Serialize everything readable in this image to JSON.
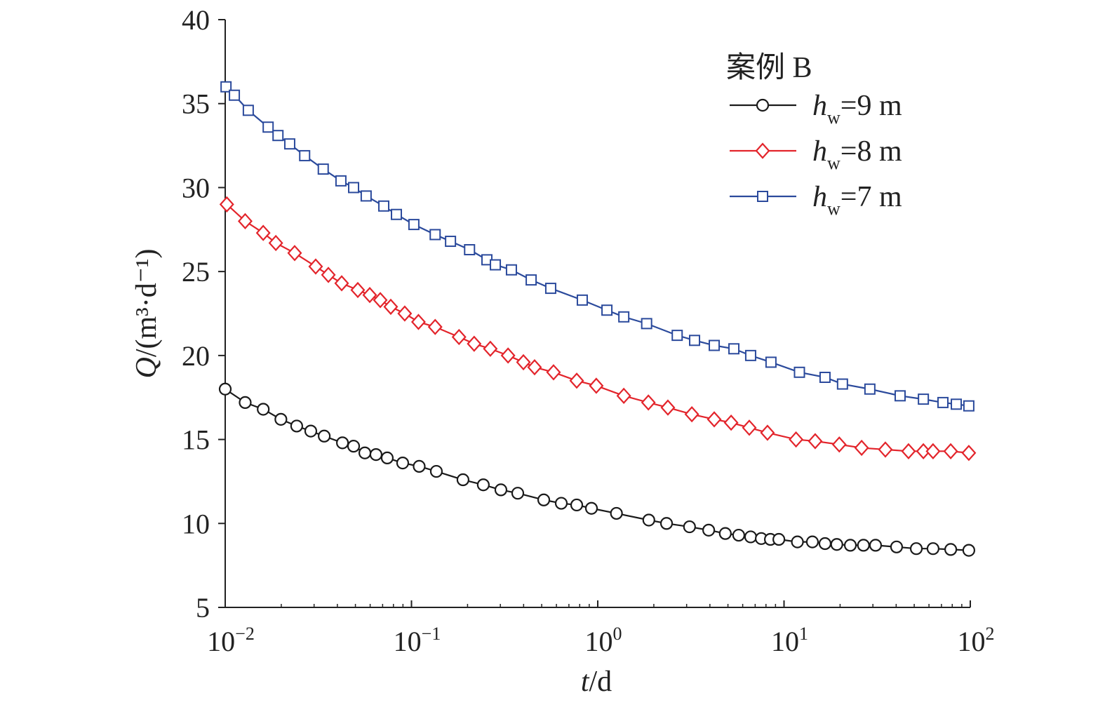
{
  "chart_data": {
    "type": "line",
    "title": "",
    "legend_title": "案例 B",
    "legend_placement": "top-right",
    "xlabel": {
      "var": "t",
      "rest": "/d"
    },
    "ylabel": {
      "var": "Q",
      "rest": "/(m³·d⁻¹)"
    },
    "xscale": "log",
    "xlim": [
      0.01,
      100
    ],
    "ylim": [
      5,
      40
    ],
    "grid": false,
    "xticks": [
      {
        "value": 0.01,
        "base": "10",
        "exp": "−2"
      },
      {
        "value": 0.1,
        "base": "10",
        "exp": "−1"
      },
      {
        "value": 1,
        "base": "10",
        "exp": "0"
      },
      {
        "value": 10,
        "base": "10",
        "exp": "1"
      },
      {
        "value": 100,
        "base": "10",
        "exp": "2"
      }
    ],
    "yticks": [
      {
        "value": 5,
        "label": "5"
      },
      {
        "value": 10,
        "label": "10"
      },
      {
        "value": 15,
        "label": "15"
      },
      {
        "value": 20,
        "label": "20"
      },
      {
        "value": 25,
        "label": "25"
      },
      {
        "value": 30,
        "label": "30"
      },
      {
        "value": 35,
        "label": "35"
      },
      {
        "value": 40,
        "label": "40"
      }
    ],
    "series": [
      {
        "label_var": "h",
        "label_sub": "w",
        "label_rest": "=9 m",
        "color": "#1a1a1a",
        "marker": "circle",
        "t": [
          0.01,
          0.0128,
          0.016,
          0.0199,
          0.0242,
          0.0288,
          0.034,
          0.0426,
          0.0489,
          0.0562,
          0.0645,
          0.0741,
          0.0897,
          0.11,
          0.136,
          0.189,
          0.243,
          0.302,
          0.372,
          0.513,
          0.637,
          0.771,
          0.925,
          1.26,
          1.88,
          2.34,
          3.11,
          3.94,
          4.84,
          5.71,
          6.62,
          7.55,
          8.45,
          9.38,
          11.8,
          14.2,
          16.6,
          19.2,
          22.7,
          26.7,
          31.0,
          40.2,
          51.3,
          63.1,
          78.5,
          98.2
        ],
        "Q": [
          18.0,
          17.2,
          16.8,
          16.2,
          15.8,
          15.5,
          15.2,
          14.8,
          14.6,
          14.2,
          14.1,
          13.9,
          13.6,
          13.4,
          13.1,
          12.6,
          12.3,
          12.0,
          11.8,
          11.4,
          11.2,
          11.1,
          10.9,
          10.6,
          10.2,
          10.0,
          9.8,
          9.6,
          9.4,
          9.3,
          9.2,
          9.1,
          9.05,
          9.05,
          8.9,
          8.9,
          8.8,
          8.75,
          8.7,
          8.7,
          8.7,
          8.6,
          8.5,
          8.5,
          8.45,
          8.4
        ]
      },
      {
        "label_var": "h",
        "label_sub": "w",
        "label_rest": "=8 m",
        "color": "#e3242b",
        "marker": "diamond",
        "t": [
          0.0102,
          0.0128,
          0.016,
          0.0187,
          0.0236,
          0.0306,
          0.0358,
          0.0422,
          0.0515,
          0.0597,
          0.068,
          0.0774,
          0.092,
          0.109,
          0.134,
          0.18,
          0.217,
          0.265,
          0.33,
          0.399,
          0.458,
          0.579,
          0.771,
          0.982,
          1.38,
          1.87,
          2.38,
          3.2,
          4.22,
          5.2,
          6.51,
          8.15,
          11.6,
          14.7,
          19.8,
          26.1,
          35.0,
          46.6,
          56.0,
          63.1,
          78.5,
          98.2
        ],
        "Q": [
          29.0,
          28.0,
          27.3,
          26.7,
          26.1,
          25.3,
          24.8,
          24.3,
          23.9,
          23.6,
          23.3,
          22.9,
          22.5,
          22.0,
          21.7,
          21.1,
          20.7,
          20.4,
          20.0,
          19.6,
          19.3,
          19.0,
          18.5,
          18.2,
          17.6,
          17.2,
          16.9,
          16.5,
          16.2,
          16.0,
          15.7,
          15.4,
          15.0,
          14.9,
          14.7,
          14.5,
          14.4,
          14.3,
          14.3,
          14.3,
          14.3,
          14.2
        ]
      },
      {
        "label_var": "h",
        "label_sub": "w",
        "label_rest": "=7 m",
        "color": "#2b4a9c",
        "marker": "square",
        "t": [
          0.0101,
          0.0112,
          0.0133,
          0.017,
          0.0192,
          0.0222,
          0.0267,
          0.0336,
          0.0418,
          0.0489,
          0.0571,
          0.071,
          0.083,
          0.103,
          0.134,
          0.162,
          0.205,
          0.254,
          0.282,
          0.344,
          0.439,
          0.559,
          0.826,
          1.12,
          1.38,
          1.83,
          2.67,
          3.31,
          4.22,
          5.38,
          6.62,
          8.51,
          12.1,
          16.6,
          20.6,
          28.9,
          42.0,
          56.0,
          71.3,
          84.1,
          98.2
        ],
        "Q": [
          36.0,
          35.5,
          34.6,
          33.6,
          33.1,
          32.6,
          31.9,
          31.1,
          30.4,
          30.0,
          29.5,
          28.9,
          28.4,
          27.8,
          27.2,
          26.8,
          26.3,
          25.7,
          25.4,
          25.1,
          24.5,
          24.0,
          23.3,
          22.7,
          22.3,
          21.9,
          21.2,
          20.9,
          20.6,
          20.4,
          20.0,
          19.6,
          19.0,
          18.7,
          18.3,
          18.0,
          17.6,
          17.4,
          17.2,
          17.1,
          17.0
        ]
      }
    ]
  }
}
